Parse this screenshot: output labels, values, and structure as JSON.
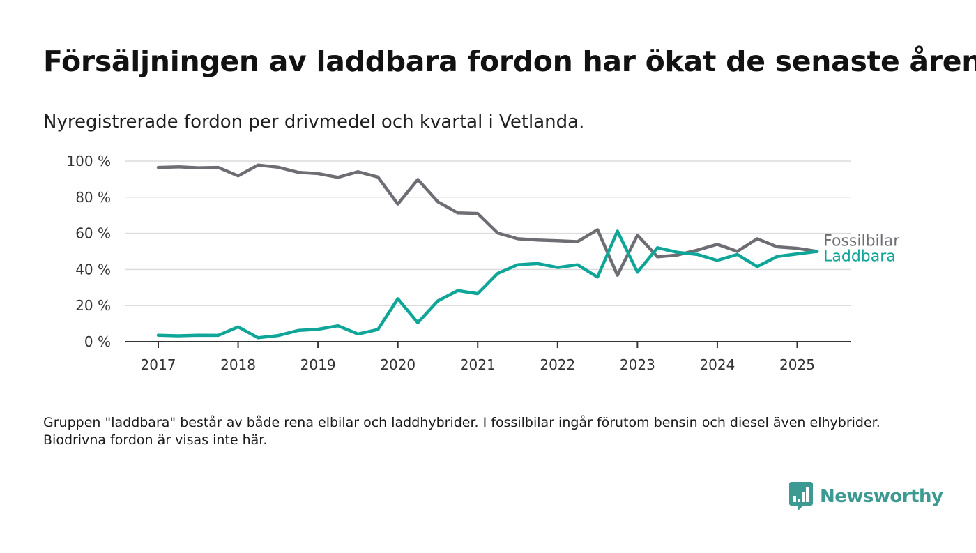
{
  "header": {
    "title": "Försäljningen av laddbara fordon har ökat de senaste åren",
    "subtitle": "Nyregistrerade fordon per drivmedel och kvartal i Vetlanda."
  },
  "footer": {
    "note": "Gruppen \"laddbara\" består av både rena elbilar och laddhybrider. I fossilbilar ingår förutom bensin och diesel även elhybrider. Biodrivna fordon är visas inte här.",
    "brand": "Newsworthy",
    "brand_icon": "chart-bubble-icon",
    "brand_color": "#3c9a93"
  },
  "chart_data": {
    "type": "line",
    "title": "Försäljningen av laddbara fordon har ökat de senaste åren",
    "subtitle": "Nyregistrerade fordon per drivmedel och kvartal i Vetlanda.",
    "xlabel": "",
    "ylabel": "",
    "y_unit": "%",
    "ylim": [
      0,
      100
    ],
    "yticks": [
      0,
      20,
      40,
      60,
      80,
      100
    ],
    "ytick_labels": [
      "0 %",
      "20 %",
      "40 %",
      "60 %",
      "80 %",
      "100 %"
    ],
    "xticks": [
      2017,
      2018,
      2019,
      2020,
      2021,
      2022,
      2023,
      2024,
      2025
    ],
    "grid": true,
    "legend": "direct labels at line ends",
    "x": [
      "2017 Q1",
      "2017 Q2",
      "2017 Q3",
      "2017 Q4",
      "2018 Q1",
      "2018 Q2",
      "2018 Q3",
      "2018 Q4",
      "2019 Q1",
      "2019 Q2",
      "2019 Q3",
      "2019 Q4",
      "2020 Q1",
      "2020 Q2",
      "2020 Q3",
      "2020 Q4",
      "2021 Q1",
      "2021 Q2",
      "2021 Q3",
      "2021 Q4",
      "2022 Q1",
      "2022 Q2",
      "2022 Q3",
      "2022 Q4",
      "2023 Q1",
      "2023 Q2",
      "2023 Q3",
      "2023 Q4",
      "2024 Q1",
      "2024 Q2",
      "2024 Q3",
      "2024 Q4",
      "2025 Q1",
      "2025 Q2"
    ],
    "series": [
      {
        "name": "Fossilbilar",
        "color": "#6f6d74",
        "values": [
          96.5,
          96.8,
          96.3,
          96.5,
          91.8,
          97.8,
          96.6,
          93.8,
          93.1,
          91.0,
          94.1,
          91.2,
          76.2,
          89.8,
          77.5,
          71.3,
          71.0,
          60.2,
          57.0,
          56.3,
          55.9,
          55.4,
          62.0,
          36.8,
          59.0,
          47.0,
          48.0,
          50.7,
          53.9,
          50.0,
          57.0,
          52.5,
          51.7,
          50.0
        ]
      },
      {
        "name": "Laddbara",
        "color": "#0fa598",
        "values": [
          3.6,
          3.3,
          3.6,
          3.5,
          8.2,
          2.2,
          3.4,
          6.2,
          6.9,
          8.8,
          4.3,
          6.7,
          23.8,
          10.5,
          22.6,
          28.3,
          26.6,
          37.8,
          42.6,
          43.3,
          41.1,
          42.6,
          35.8,
          61.2,
          38.5,
          52.0,
          49.5,
          48.3,
          45.0,
          48.3,
          41.6,
          47.2,
          48.6,
          50.0
        ]
      }
    ]
  }
}
